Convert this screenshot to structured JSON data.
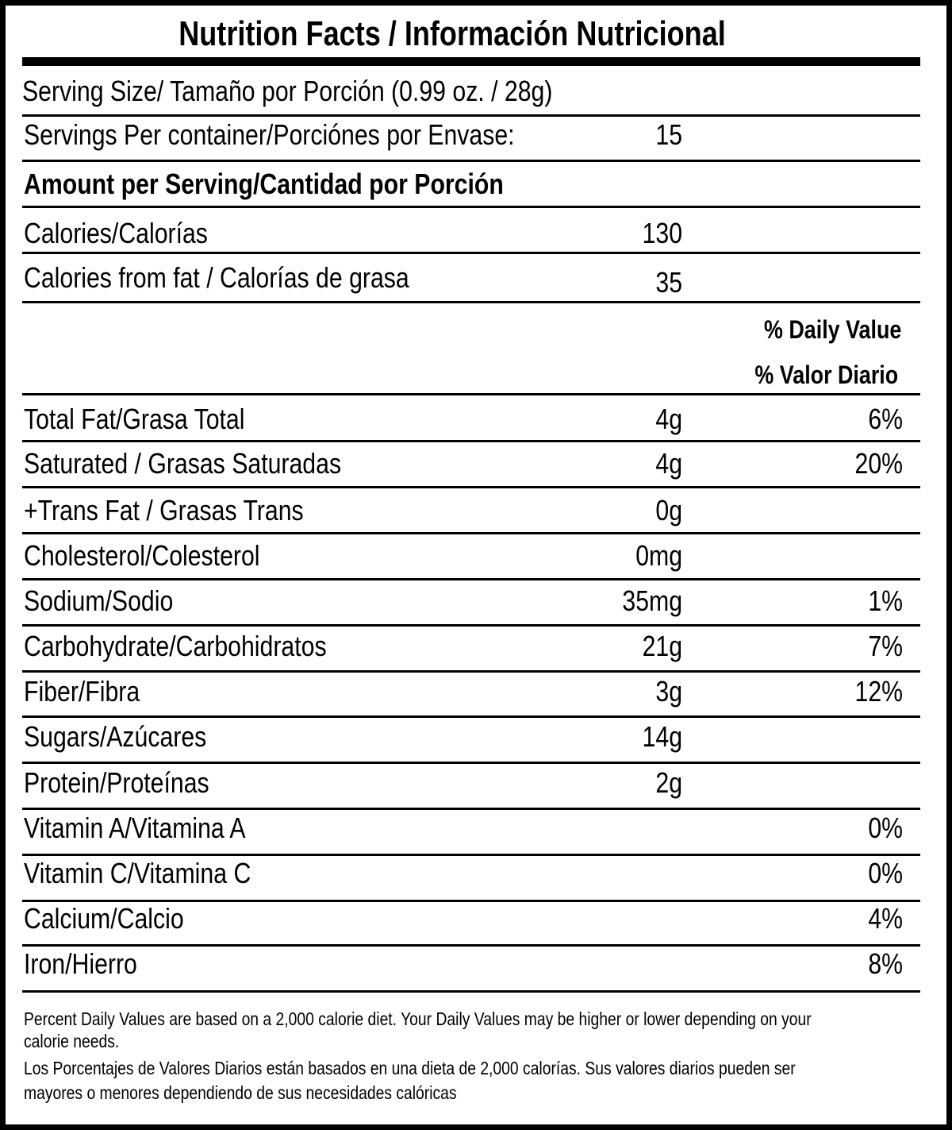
{
  "title": "Nutrition Facts / Información Nutricional",
  "serving_size": "Serving Size/ Tamaño por Porción  (0.99 oz. / 28g)",
  "servings_per_container": {
    "label": "Servings Per container/Porciónes por Envase:",
    "value": "15"
  },
  "amount_header": "Amount per Serving/Cantidad por Porción",
  "calories": {
    "label": "Calories/Calorías",
    "value": "130"
  },
  "calories_from_fat": {
    "label": "Calories from fat / Calorías de grasa",
    "value": "35"
  },
  "daily_value_header": [
    "% Daily Value",
    "% Valor Diario"
  ],
  "rows": [
    {
      "label": "Total Fat/Grasa Total",
      "amount": "4g",
      "dv": "6%"
    },
    {
      "label": "Saturated / Grasas Saturadas",
      "amount": "4g",
      "dv": "20%"
    },
    {
      "label": "+Trans Fat / Grasas Trans",
      "amount": "0g"
    },
    {
      "label": "Cholesterol/Colesterol",
      "amount": "0mg"
    },
    {
      "label": "Sodium/Sodio",
      "amount": "35mg",
      "dv": "1%"
    },
    {
      "label": "Carbohydrate/Carbohidratos",
      "amount": "21g",
      "dv": "7%"
    },
    {
      "label": "Fiber/Fibra",
      "amount": "3g",
      "dv": "12%"
    },
    {
      "label": "Sugars/Azúcares",
      "amount": "14g"
    },
    {
      "label": "Protein/Proteínas",
      "amount": "2g"
    },
    {
      "label": "Vitamin A/Vitamina A",
      "dv": "0%"
    },
    {
      "label": "Vitamin C/Vitamina C",
      "dv": "0%"
    },
    {
      "label": "Calcium/Calcio",
      "dv": "4%"
    },
    {
      "label": "Iron/Hierro",
      "dv": "8%"
    }
  ],
  "footnotes": [
    "Percent Daily Values are based on a 2,000 calorie diet. Your Daily Values may be higher or lower depending on your",
    "calorie needs.",
    "Los Porcentajes de Valores Diarios están basados en una dieta de 2,000 calorías. Sus valores diarios pueden ser",
    "mayores o menores dependiendo de sus necesidades calóricas"
  ]
}
